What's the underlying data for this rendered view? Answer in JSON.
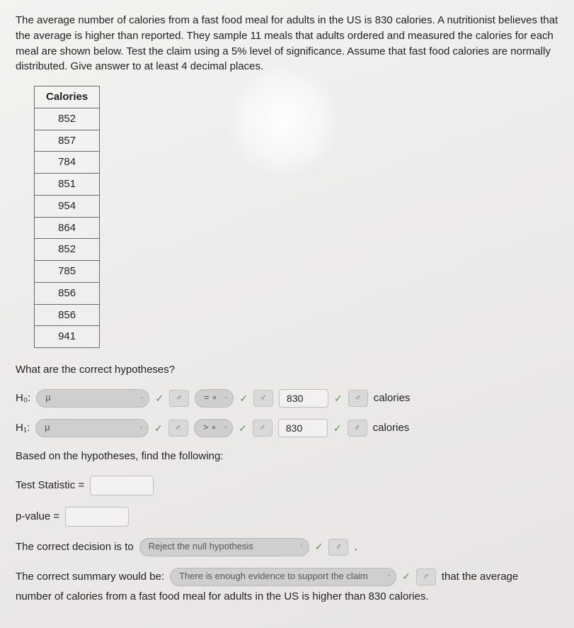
{
  "prompt": "The average number of calories from a fast food meal for adults in the US is 830 calories. A nutritionist believes that the average is higher than reported. They sample 11 meals that adults ordered and measured the calories for each meal are shown below. Test the claim using a 5% level of significance. Assume that fast food calories are normally distributed. Give answer to at least 4 decimal places.",
  "table": {
    "header": "Calories",
    "rows": [
      "852",
      "857",
      "784",
      "851",
      "954",
      "864",
      "852",
      "785",
      "856",
      "856",
      "941"
    ]
  },
  "q_hypotheses": "What are the correct hypotheses?",
  "h0": {
    "label": "H₀:",
    "param": "μ",
    "badge1": "♂",
    "relation": "= ∘",
    "badge2": "♂",
    "value": "830",
    "badge3": "♂",
    "unit": "calories"
  },
  "h1": {
    "label": "H₁:",
    "param": "μ",
    "badge1": "♂",
    "relation": "> ∘",
    "badge2": "♂",
    "value": "830",
    "badge3": "♂",
    "unit": "calories"
  },
  "based_on": "Based on the hypotheses, find the following:",
  "test_stat_label": "Test Statistic =",
  "pvalue_label": "p-value =",
  "decision": {
    "lead": "The correct decision is to",
    "choice": "Reject the null hypothesis",
    "badge": "♂",
    "tail": "."
  },
  "summary": {
    "lead": "The correct summary would be:",
    "choice": "There is enough evidence to support the claim",
    "badge": "♂",
    "mid": "that the average",
    "tail": "number of calories from a fast food meal for adults in the US is higher than 830 calories."
  },
  "chev": "◦"
}
